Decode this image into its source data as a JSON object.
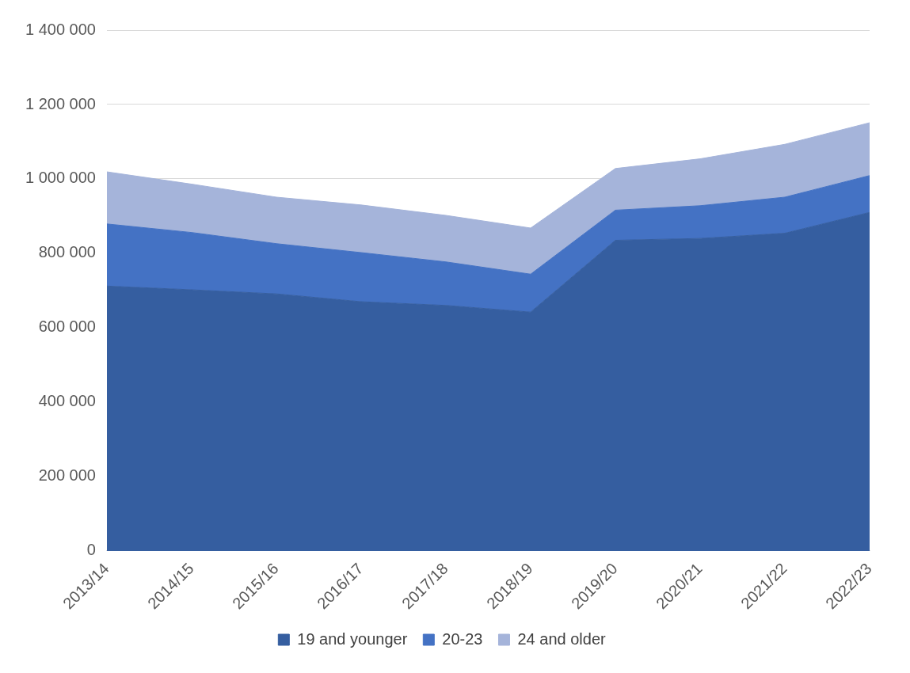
{
  "chart_data": {
    "type": "area",
    "stacked": true,
    "categories": [
      "2013/14",
      "2014/15",
      "2015/16",
      "2016/17",
      "2017/18",
      "2018/19",
      "2019/20",
      "2020/21",
      "2021/22",
      "2022/23"
    ],
    "series": [
      {
        "name": "19 and younger",
        "color": "#355ea0",
        "values": [
          712000,
          702000,
          691000,
          670000,
          660000,
          642000,
          835000,
          840000,
          854000,
          910000
        ]
      },
      {
        "name": "20-23",
        "color": "#4472c4",
        "values": [
          167000,
          154000,
          135000,
          132000,
          117000,
          102000,
          81000,
          88000,
          97000,
          99000
        ]
      },
      {
        "name": "24 and older",
        "color": "#a5b4da",
        "values": [
          140000,
          130000,
          125000,
          128000,
          125000,
          124000,
          112000,
          126000,
          142000,
          142000
        ]
      }
    ],
    "ylim": [
      0,
      1400000
    ],
    "yticks": [
      0,
      {
        "value": 200000,
        "label": "200 000"
      },
      {
        "value": 400000,
        "label": "400 000"
      },
      {
        "value": 600000,
        "label": "600 000"
      },
      {
        "value": 800000,
        "label": "800 000"
      },
      {
        "value": 1000000,
        "label": "1 000 000"
      },
      {
        "value": 1200000,
        "label": "1 200 000"
      },
      {
        "value": 1400000,
        "label": "1 400 000"
      }
    ],
    "grid": "y",
    "legend": "bottom"
  }
}
